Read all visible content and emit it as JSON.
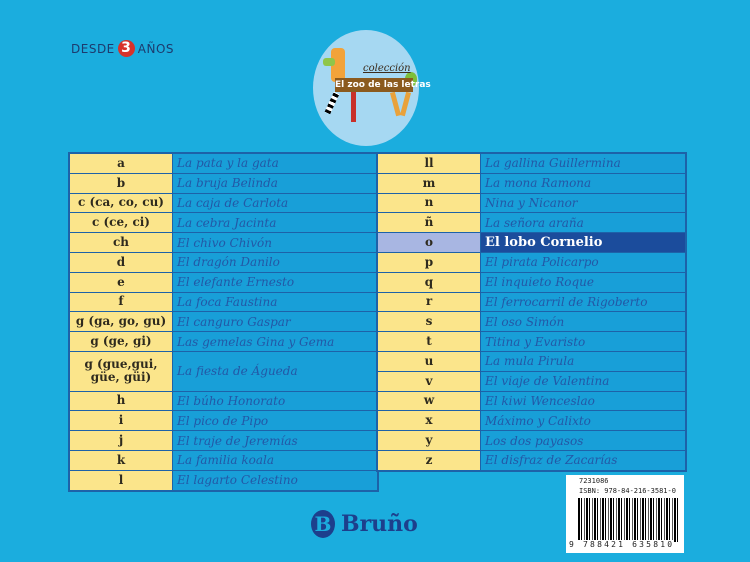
{
  "age_badge": {
    "prefix": "DESDE",
    "number": "3",
    "suffix": "AÑOS"
  },
  "logo": {
    "collection": "colección",
    "series_title": "El zoo de las letras"
  },
  "left_table": [
    {
      "letter": "a",
      "title": "La pata y la gata"
    },
    {
      "letter": "b",
      "title": "La bruja Belinda"
    },
    {
      "letter": "c (ca, co, cu)",
      "title": "La caja de Carlota"
    },
    {
      "letter": "c (ce, ci)",
      "title": "La cebra Jacinta"
    },
    {
      "letter": "ch",
      "title": "El chivo Chivón"
    },
    {
      "letter": "d",
      "title": "El dragón Danilo"
    },
    {
      "letter": "e",
      "title": "El elefante Ernesto"
    },
    {
      "letter": "f",
      "title": "La foca Faustina"
    },
    {
      "letter": "g (ga, go, gu)",
      "title": "El canguro Gaspar"
    },
    {
      "letter": "g (ge, gi)",
      "title": "Las gemelas Gina y Gema"
    },
    {
      "letter": "g (gue,gui, güe, güi)",
      "title": "La fiesta de Águeda"
    },
    {
      "letter": "h",
      "title": "El búho Honorato"
    },
    {
      "letter": "i",
      "title": "El pico de Pipo"
    },
    {
      "letter": "j",
      "title": "El traje de Jeremías"
    },
    {
      "letter": "k",
      "title": "La familia koala"
    },
    {
      "letter": "l",
      "title": "El lagarto Celestino"
    }
  ],
  "right_table": [
    {
      "letter": "ll",
      "title": "La gallina Guillermina"
    },
    {
      "letter": "m",
      "title": "La mona Ramona"
    },
    {
      "letter": "n",
      "title": "Nina y Nicanor"
    },
    {
      "letter": "ñ",
      "title": "La señora araña"
    },
    {
      "letter": "o",
      "title": "El lobo Cornelio",
      "highlighted": true
    },
    {
      "letter": "p",
      "title": "El pirata Policarpo"
    },
    {
      "letter": "q",
      "title": "El inquieto Roque"
    },
    {
      "letter": "r",
      "title": "El ferrocarril de Rigoberto"
    },
    {
      "letter": "s",
      "title": "El oso Simón"
    },
    {
      "letter": "t",
      "title": "Titina y Evaristo"
    },
    {
      "letter": "u",
      "title": "La mula Pirula"
    },
    {
      "letter": "v",
      "title": "El viaje de Valentina"
    },
    {
      "letter": "w",
      "title": "El kiwi Wenceslao"
    },
    {
      "letter": "x",
      "title": "Máximo y Calixto"
    },
    {
      "letter": "y",
      "title": "Los dos payasos"
    },
    {
      "letter": "z",
      "title": "El disfraz de Zacarías"
    }
  ],
  "barcode": {
    "code": "7231086",
    "isbn": "ISBN: 978-84-216-3581-0",
    "digits": "9 788421 635810"
  },
  "publisher": {
    "name": "Bruño",
    "mark": "B"
  },
  "colors": {
    "background": "#1badde",
    "letter_cell": "#fbe58b",
    "title_cell": "#189fd8",
    "highlight": "#1b4c9c"
  }
}
